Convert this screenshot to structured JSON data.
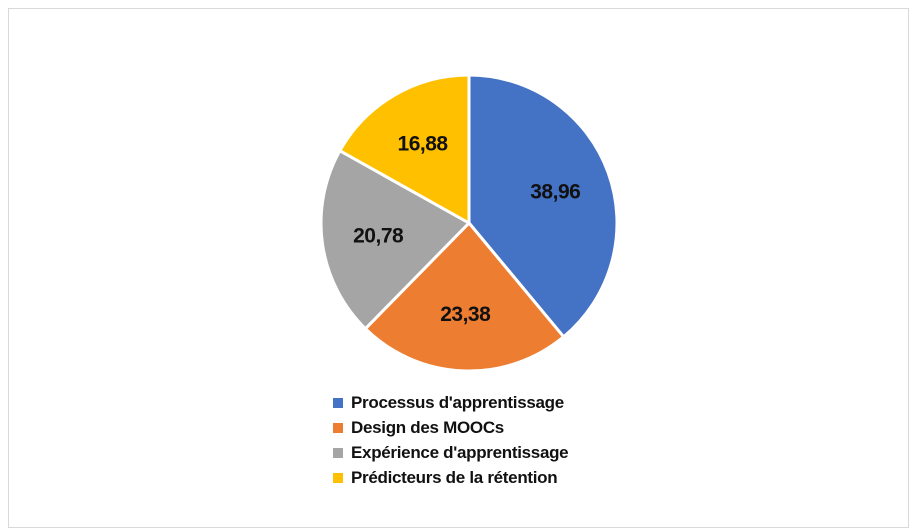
{
  "chart_data": {
    "type": "pie",
    "title": "",
    "categories": [
      "Processus d'apprentissage",
      "Design des MOOCs",
      "Expérience d'apprentissage",
      "Prédicteurs de la rétention"
    ],
    "values": [
      38.96,
      23.38,
      20.78,
      16.88
    ],
    "value_labels": [
      "38,96",
      "23,38",
      "20,78",
      "16,88"
    ],
    "colors": [
      "#4472C4",
      "#ED7D31",
      "#A5A5A5",
      "#FFC000"
    ],
    "start_angle": "12 o'clock",
    "direction": "clockwise",
    "slice_border_color": "#FFFFFF",
    "legend_position": "bottom"
  }
}
